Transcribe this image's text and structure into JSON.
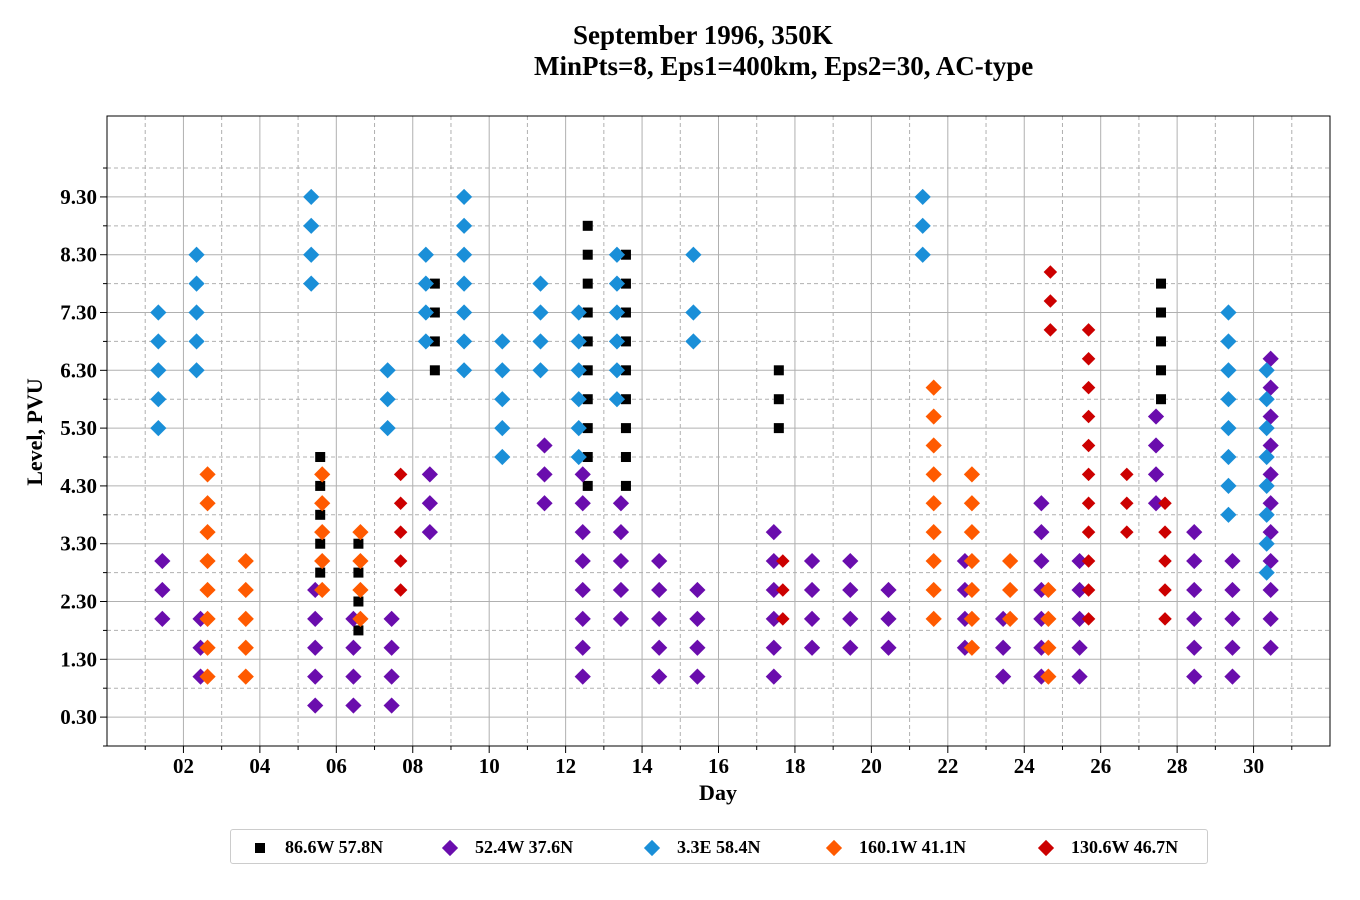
{
  "chart_data": {
    "type": "scatter",
    "title": [
      "September 1996, 350K",
      "MinPts=8, Eps1=400km, Eps2=30, AC-type"
    ],
    "xlabel": "Day",
    "ylabel": "Level, PVU",
    "xlim": [
      0,
      32
    ],
    "ylim": [
      -0.2,
      10.7
    ],
    "xticks": [
      "02",
      "04",
      "06",
      "08",
      "10",
      "12",
      "14",
      "16",
      "18",
      "20",
      "22",
      "24",
      "26",
      "28",
      "30"
    ],
    "yticks": [
      "0.30",
      "1.30",
      "2.30",
      "3.30",
      "4.30",
      "5.30",
      "6.30",
      "7.30",
      "8.30",
      "9.30"
    ],
    "grid": true,
    "legend_position": "bottom",
    "series": [
      {
        "name": "86.6W 57.8N",
        "color": "#000000",
        "marker": "square",
        "points": [
          [
            5.5,
            2.8
          ],
          [
            5.5,
            3.3
          ],
          [
            5.5,
            3.8
          ],
          [
            5.5,
            4.3
          ],
          [
            5.5,
            4.8
          ],
          [
            6.5,
            1.8
          ],
          [
            6.5,
            2.3
          ],
          [
            6.5,
            2.8
          ],
          [
            6.5,
            3.3
          ],
          [
            8.5,
            6.3
          ],
          [
            8.5,
            6.8
          ],
          [
            8.5,
            7.3
          ],
          [
            8.5,
            7.8
          ],
          [
            12.5,
            4.3
          ],
          [
            12.5,
            4.8
          ],
          [
            12.5,
            5.3
          ],
          [
            12.5,
            5.8
          ],
          [
            12.5,
            6.3
          ],
          [
            12.5,
            6.8
          ],
          [
            12.5,
            7.3
          ],
          [
            12.5,
            7.8
          ],
          [
            12.5,
            8.3
          ],
          [
            12.5,
            8.8
          ],
          [
            13.5,
            4.3
          ],
          [
            13.5,
            4.8
          ],
          [
            13.5,
            5.3
          ],
          [
            13.5,
            5.8
          ],
          [
            13.5,
            6.3
          ],
          [
            13.5,
            6.8
          ],
          [
            13.5,
            7.3
          ],
          [
            13.5,
            7.8
          ],
          [
            13.5,
            8.3
          ],
          [
            17.5,
            5.3
          ],
          [
            17.5,
            5.8
          ],
          [
            17.5,
            6.3
          ],
          [
            27.5,
            5.8
          ],
          [
            27.5,
            6.3
          ],
          [
            27.5,
            6.8
          ],
          [
            27.5,
            7.3
          ],
          [
            27.5,
            7.8
          ]
        ]
      },
      {
        "name": "52.4W 37.6N",
        "color": "#6a0dad",
        "marker": "diamond",
        "points": [
          [
            1.5,
            2.0
          ],
          [
            1.5,
            2.5
          ],
          [
            1.5,
            3.0
          ],
          [
            2.5,
            1.0
          ],
          [
            2.5,
            1.5
          ],
          [
            2.5,
            2.0
          ],
          [
            5.5,
            0.5
          ],
          [
            5.5,
            1.0
          ],
          [
            5.5,
            1.5
          ],
          [
            5.5,
            2.0
          ],
          [
            5.5,
            2.5
          ],
          [
            6.5,
            0.5
          ],
          [
            6.5,
            1.0
          ],
          [
            6.5,
            1.5
          ],
          [
            6.5,
            2.0
          ],
          [
            7.5,
            0.5
          ],
          [
            7.5,
            1.0
          ],
          [
            7.5,
            1.5
          ],
          [
            7.5,
            2.0
          ],
          [
            8.5,
            3.5
          ],
          [
            8.5,
            4.0
          ],
          [
            8.5,
            4.5
          ],
          [
            11.5,
            4.0
          ],
          [
            11.5,
            4.5
          ],
          [
            11.5,
            5.0
          ],
          [
            12.5,
            1.0
          ],
          [
            12.5,
            1.5
          ],
          [
            12.5,
            2.0
          ],
          [
            12.5,
            2.5
          ],
          [
            12.5,
            3.0
          ],
          [
            12.5,
            3.5
          ],
          [
            12.5,
            4.0
          ],
          [
            12.5,
            4.5
          ],
          [
            13.5,
            2.0
          ],
          [
            13.5,
            2.5
          ],
          [
            13.5,
            3.0
          ],
          [
            13.5,
            3.5
          ],
          [
            13.5,
            4.0
          ],
          [
            14.5,
            1.0
          ],
          [
            14.5,
            1.5
          ],
          [
            14.5,
            2.0
          ],
          [
            14.5,
            2.5
          ],
          [
            14.5,
            3.0
          ],
          [
            15.5,
            1.0
          ],
          [
            15.5,
            1.5
          ],
          [
            15.5,
            2.0
          ],
          [
            15.5,
            2.5
          ],
          [
            17.5,
            1.0
          ],
          [
            17.5,
            1.5
          ],
          [
            17.5,
            2.0
          ],
          [
            17.5,
            2.5
          ],
          [
            17.5,
            3.0
          ],
          [
            17.5,
            3.5
          ],
          [
            18.5,
            1.5
          ],
          [
            18.5,
            2.0
          ],
          [
            18.5,
            2.5
          ],
          [
            18.5,
            3.0
          ],
          [
            19.5,
            1.5
          ],
          [
            19.5,
            2.0
          ],
          [
            19.5,
            2.5
          ],
          [
            19.5,
            3.0
          ],
          [
            20.5,
            1.5
          ],
          [
            20.5,
            2.0
          ],
          [
            20.5,
            2.5
          ],
          [
            22.5,
            1.5
          ],
          [
            22.5,
            2.0
          ],
          [
            22.5,
            2.5
          ],
          [
            22.5,
            3.0
          ],
          [
            23.5,
            1.0
          ],
          [
            23.5,
            1.5
          ],
          [
            23.5,
            2.0
          ],
          [
            24.5,
            1.0
          ],
          [
            24.5,
            1.5
          ],
          [
            24.5,
            2.0
          ],
          [
            24.5,
            2.5
          ],
          [
            24.5,
            3.0
          ],
          [
            24.5,
            3.5
          ],
          [
            24.5,
            4.0
          ],
          [
            25.5,
            1.0
          ],
          [
            25.5,
            1.5
          ],
          [
            25.5,
            2.0
          ],
          [
            25.5,
            2.5
          ],
          [
            25.5,
            3.0
          ],
          [
            27.5,
            4.0
          ],
          [
            27.5,
            4.5
          ],
          [
            27.5,
            5.0
          ],
          [
            27.5,
            5.5
          ],
          [
            28.5,
            1.0
          ],
          [
            28.5,
            1.5
          ],
          [
            28.5,
            2.0
          ],
          [
            28.5,
            2.5
          ],
          [
            28.5,
            3.0
          ],
          [
            28.5,
            3.5
          ],
          [
            29.5,
            1.0
          ],
          [
            29.5,
            1.5
          ],
          [
            29.5,
            2.0
          ],
          [
            29.5,
            2.5
          ],
          [
            29.5,
            3.0
          ],
          [
            30.5,
            1.5
          ],
          [
            30.5,
            2.0
          ],
          [
            30.5,
            2.5
          ],
          [
            30.5,
            3.0
          ],
          [
            30.5,
            3.5
          ],
          [
            30.5,
            4.0
          ],
          [
            30.5,
            4.5
          ],
          [
            30.5,
            5.0
          ],
          [
            30.5,
            5.5
          ],
          [
            30.5,
            6.0
          ],
          [
            30.5,
            6.5
          ]
        ]
      },
      {
        "name": "3.3E 58.4N",
        "color": "#1a8fd8",
        "marker": "diamond",
        "points": [
          [
            1.5,
            5.3
          ],
          [
            1.5,
            5.8
          ],
          [
            1.5,
            6.3
          ],
          [
            1.5,
            6.8
          ],
          [
            1.5,
            7.3
          ],
          [
            2.5,
            6.3
          ],
          [
            2.5,
            6.8
          ],
          [
            2.5,
            7.3
          ],
          [
            2.5,
            7.8
          ],
          [
            2.5,
            8.3
          ],
          [
            5.5,
            7.8
          ],
          [
            5.5,
            8.3
          ],
          [
            5.5,
            8.8
          ],
          [
            5.5,
            9.3
          ],
          [
            7.5,
            5.3
          ],
          [
            7.5,
            5.8
          ],
          [
            7.5,
            6.3
          ],
          [
            8.5,
            6.8
          ],
          [
            8.5,
            7.3
          ],
          [
            8.5,
            7.8
          ],
          [
            8.5,
            8.3
          ],
          [
            9.5,
            6.3
          ],
          [
            9.5,
            6.8
          ],
          [
            9.5,
            7.3
          ],
          [
            9.5,
            7.8
          ],
          [
            9.5,
            8.3
          ],
          [
            9.5,
            8.8
          ],
          [
            9.5,
            9.3
          ],
          [
            10.5,
            4.8
          ],
          [
            10.5,
            5.3
          ],
          [
            10.5,
            5.8
          ],
          [
            10.5,
            6.3
          ],
          [
            10.5,
            6.8
          ],
          [
            11.5,
            6.3
          ],
          [
            11.5,
            6.8
          ],
          [
            11.5,
            7.3
          ],
          [
            11.5,
            7.8
          ],
          [
            12.5,
            4.8
          ],
          [
            12.5,
            5.3
          ],
          [
            12.5,
            5.8
          ],
          [
            12.5,
            6.3
          ],
          [
            12.5,
            6.8
          ],
          [
            12.5,
            7.3
          ],
          [
            13.5,
            5.8
          ],
          [
            13.5,
            6.3
          ],
          [
            13.5,
            6.8
          ],
          [
            13.5,
            7.3
          ],
          [
            13.5,
            7.8
          ],
          [
            13.5,
            8.3
          ],
          [
            15.5,
            6.8
          ],
          [
            15.5,
            7.3
          ],
          [
            15.5,
            8.3
          ],
          [
            21.5,
            8.3
          ],
          [
            21.5,
            8.8
          ],
          [
            21.5,
            9.3
          ],
          [
            29.5,
            3.8
          ],
          [
            29.5,
            4.3
          ],
          [
            29.5,
            4.8
          ],
          [
            29.5,
            5.3
          ],
          [
            29.5,
            5.8
          ],
          [
            29.5,
            6.3
          ],
          [
            29.5,
            6.8
          ],
          [
            29.5,
            7.3
          ],
          [
            30.5,
            2.8
          ],
          [
            30.5,
            3.3
          ],
          [
            30.5,
            3.8
          ],
          [
            30.5,
            4.3
          ],
          [
            30.5,
            4.8
          ],
          [
            30.5,
            5.3
          ],
          [
            30.5,
            5.8
          ],
          [
            30.5,
            6.3
          ]
        ]
      },
      {
        "name": "160.1W 41.1N",
        "color": "#ff5a00",
        "marker": "diamond",
        "points": [
          [
            2.5,
            1.0
          ],
          [
            2.5,
            1.5
          ],
          [
            2.5,
            2.0
          ],
          [
            2.5,
            2.5
          ],
          [
            2.5,
            3.0
          ],
          [
            2.5,
            3.5
          ],
          [
            2.5,
            4.0
          ],
          [
            2.5,
            4.5
          ],
          [
            3.5,
            1.0
          ],
          [
            3.5,
            1.5
          ],
          [
            3.5,
            2.0
          ],
          [
            3.5,
            2.5
          ],
          [
            3.5,
            3.0
          ],
          [
            5.5,
            2.5
          ],
          [
            5.5,
            3.0
          ],
          [
            5.5,
            3.5
          ],
          [
            5.5,
            4.0
          ],
          [
            5.5,
            4.5
          ],
          [
            6.5,
            2.0
          ],
          [
            6.5,
            2.5
          ],
          [
            6.5,
            3.0
          ],
          [
            6.5,
            3.5
          ],
          [
            21.5,
            2.0
          ],
          [
            21.5,
            2.5
          ],
          [
            21.5,
            3.0
          ],
          [
            21.5,
            3.5
          ],
          [
            21.5,
            4.0
          ],
          [
            21.5,
            4.5
          ],
          [
            21.5,
            5.0
          ],
          [
            21.5,
            5.5
          ],
          [
            21.5,
            6.0
          ],
          [
            22.5,
            1.5
          ],
          [
            22.5,
            2.0
          ],
          [
            22.5,
            2.5
          ],
          [
            22.5,
            3.0
          ],
          [
            22.5,
            3.5
          ],
          [
            22.5,
            4.0
          ],
          [
            22.5,
            4.5
          ],
          [
            23.5,
            2.0
          ],
          [
            23.5,
            2.5
          ],
          [
            23.5,
            3.0
          ],
          [
            24.5,
            1.0
          ],
          [
            24.5,
            1.5
          ],
          [
            24.5,
            2.0
          ],
          [
            24.5,
            2.5
          ]
        ]
      },
      {
        "name": "130.6W 46.7N",
        "color": "#cc0000",
        "marker": "diamond",
        "points": [
          [
            7.5,
            2.5
          ],
          [
            7.5,
            3.0
          ],
          [
            7.5,
            3.5
          ],
          [
            7.5,
            4.0
          ],
          [
            7.5,
            4.5
          ],
          [
            17.5,
            2.0
          ],
          [
            17.5,
            2.5
          ],
          [
            17.5,
            3.0
          ],
          [
            24.5,
            7.0
          ],
          [
            24.5,
            7.5
          ],
          [
            24.5,
            8.0
          ],
          [
            25.5,
            2.0
          ],
          [
            25.5,
            2.5
          ],
          [
            25.5,
            3.0
          ],
          [
            25.5,
            3.5
          ],
          [
            25.5,
            4.0
          ],
          [
            25.5,
            4.5
          ],
          [
            25.5,
            5.0
          ],
          [
            25.5,
            5.5
          ],
          [
            25.5,
            6.0
          ],
          [
            25.5,
            6.5
          ],
          [
            25.5,
            7.0
          ],
          [
            26.5,
            3.5
          ],
          [
            26.5,
            4.0
          ],
          [
            26.5,
            4.5
          ],
          [
            27.5,
            2.0
          ],
          [
            27.5,
            2.5
          ],
          [
            27.5,
            3.0
          ],
          [
            27.5,
            3.5
          ],
          [
            27.5,
            4.0
          ]
        ]
      }
    ]
  }
}
